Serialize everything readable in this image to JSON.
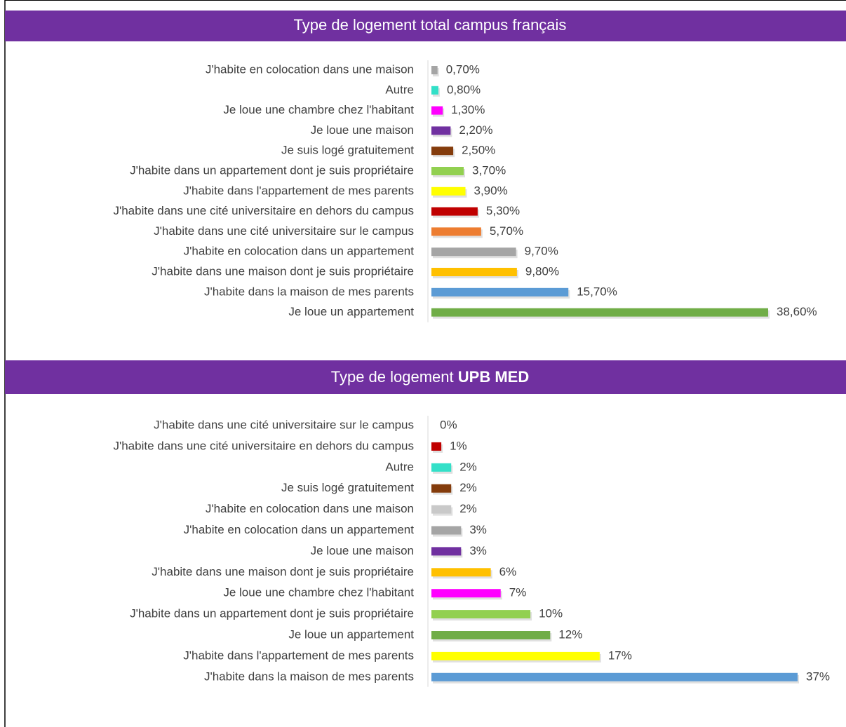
{
  "chart_data": [
    {
      "type": "bar",
      "title": "Type de logement total campus français",
      "categories": [
        "J'habite en colocation dans une maison",
        "Autre",
        "Je loue une chambre chez l'habitant",
        "Je loue une maison",
        "Je suis logé gratuitement",
        "J'habite dans un appartement dont je suis propriétaire",
        "J'habite dans l'appartement de mes parents",
        "J'habite dans une cité universitaire en dehors du campus",
        "J'habite dans une cité universitaire sur le campus",
        "J'habite en colocation dans un appartement",
        "J'habite dans une maison dont je suis propriétaire",
        "J'habite dans la maison de mes parents",
        "Je loue un appartement"
      ],
      "values": [
        0.7,
        0.8,
        1.3,
        2.2,
        2.5,
        3.7,
        3.9,
        5.3,
        5.7,
        9.7,
        9.8,
        15.7,
        38.6
      ],
      "value_labels": [
        "0,70%",
        "0,80%",
        "1,30%",
        "2,20%",
        "2,50%",
        "3,70%",
        "3,90%",
        "5,30%",
        "5,70%",
        "9,70%",
        "9,80%",
        "15,70%",
        "38,60%"
      ],
      "colors": [
        "#a5a5a5",
        "#33e0c8",
        "#ff00ff",
        "#7030a0",
        "#843c0c",
        "#92d050",
        "#ffff00",
        "#c00000",
        "#ed7d31",
        "#a5a5a5",
        "#ffc000",
        "#5b9bd5",
        "#70ad47"
      ]
    },
    {
      "type": "bar",
      "title": "Type de logement",
      "title_bold": "UPB MED",
      "categories": [
        "J'habite dans une cité universitaire sur le campus",
        "J'habite dans une cité universitaire en dehors du campus",
        "Autre",
        "Je suis logé gratuitement",
        "J'habite en colocation dans une maison",
        "J'habite en colocation dans un appartement",
        "Je loue une maison",
        "J'habite dans une maison dont je suis propriétaire",
        "Je loue une chambre chez l'habitant",
        "J'habite dans un appartement dont je suis propriétaire",
        "Je loue un appartement",
        "J'habite dans l'appartement de mes parents",
        "J'habite dans la maison de mes parents"
      ],
      "values": [
        0,
        1,
        2,
        2,
        2,
        3,
        3,
        6,
        7,
        10,
        12,
        17,
        37
      ],
      "value_labels": [
        "0%",
        "1%",
        "2%",
        "2%",
        "2%",
        "3%",
        "3%",
        "6%",
        "7%",
        "10%",
        "12%",
        "17%",
        "37%"
      ],
      "colors": [
        "#ed7d31",
        "#c00000",
        "#33e0c8",
        "#843c0c",
        "#c9c9c9",
        "#a5a5a5",
        "#7030a0",
        "#ffc000",
        "#ff00ff",
        "#92d050",
        "#70ad47",
        "#ffff00",
        "#5b9bd5"
      ]
    }
  ]
}
